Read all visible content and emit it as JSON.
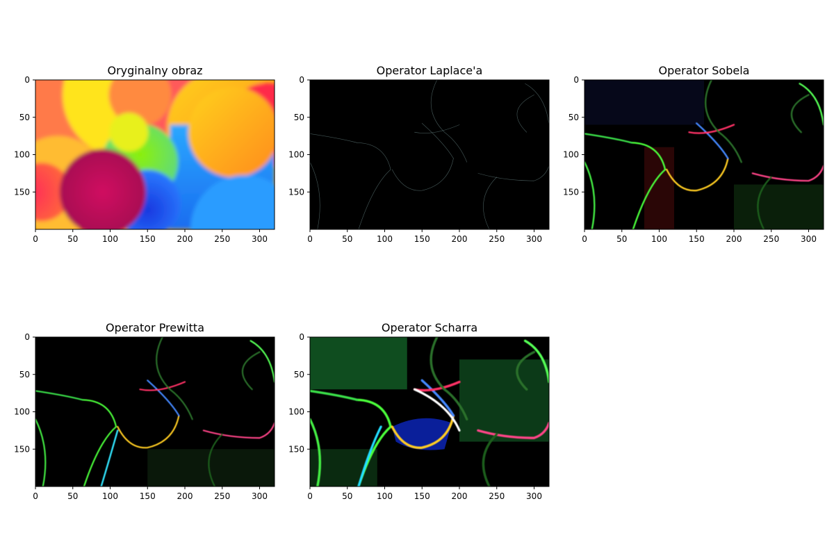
{
  "figure": {
    "background": "#ffffff"
  },
  "chart_data": [
    {
      "type": "heatmap",
      "title": "Oryginalny obraz",
      "image": "original",
      "xlim": [
        0,
        320
      ],
      "ylim": [
        200,
        0
      ],
      "x_ticks": [
        0,
        50,
        100,
        150,
        200,
        250,
        300
      ],
      "y_ticks": [
        0,
        50,
        100,
        150
      ],
      "grid": false
    },
    {
      "type": "heatmap",
      "title": "Operator Laplace'a",
      "image": "laplace",
      "xlim": [
        0,
        320
      ],
      "ylim": [
        200,
        0
      ],
      "x_ticks": [
        0,
        50,
        100,
        150,
        200,
        250,
        300
      ],
      "y_ticks": [
        0,
        50,
        100,
        150
      ],
      "grid": false
    },
    {
      "type": "heatmap",
      "title": "Operator Sobela",
      "image": "sobel",
      "xlim": [
        0,
        320
      ],
      "ylim": [
        200,
        0
      ],
      "x_ticks": [
        0,
        50,
        100,
        150,
        200,
        250,
        300
      ],
      "y_ticks": [
        0,
        50,
        100,
        150
      ],
      "grid": false
    },
    {
      "type": "heatmap",
      "title": "Operator Prewitta",
      "image": "prewitt",
      "xlim": [
        0,
        320
      ],
      "ylim": [
        200,
        0
      ],
      "x_ticks": [
        0,
        50,
        100,
        150,
        200,
        250,
        300
      ],
      "y_ticks": [
        0,
        50,
        100,
        150
      ],
      "grid": false
    },
    {
      "type": "heatmap",
      "title": "Operator Scharra",
      "image": "scharr",
      "xlim": [
        0,
        320
      ],
      "ylim": [
        200,
        0
      ],
      "x_ticks": [
        0,
        50,
        100,
        150,
        200,
        250,
        300
      ],
      "y_ticks": [
        0,
        50,
        100,
        150
      ],
      "grid": false
    }
  ]
}
